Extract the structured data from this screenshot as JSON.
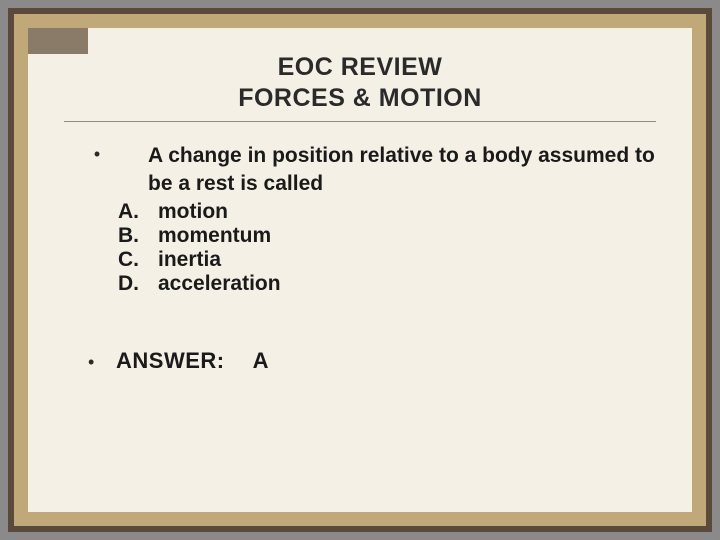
{
  "colors": {
    "page_bg": "#8a8a8a",
    "frame_outer": "#5a4a3a",
    "frame_inner": "#c0a878",
    "paper": "#f5f0e6",
    "corner_accent": "#8a7a68",
    "text": "#1a1a1a",
    "rule": "#9a8a78"
  },
  "typography": {
    "title_fontsize": 25,
    "body_fontsize": 21,
    "answer_fontsize": 22,
    "font_family": "Verdana",
    "weight": "bold"
  },
  "title_line1": "EOC REVIEW",
  "title_line2": "FORCES & MOTION",
  "question": "A change in position relative to a body assumed to be a rest is called",
  "options": [
    {
      "letter": "A.",
      "text": "motion"
    },
    {
      "letter": "B.",
      "text": "momentum"
    },
    {
      "letter": "C.",
      "text": "inertia"
    },
    {
      "letter": "D.",
      "text": "acceleration"
    }
  ],
  "answer_label": "ANSWER:",
  "answer_value": "A"
}
